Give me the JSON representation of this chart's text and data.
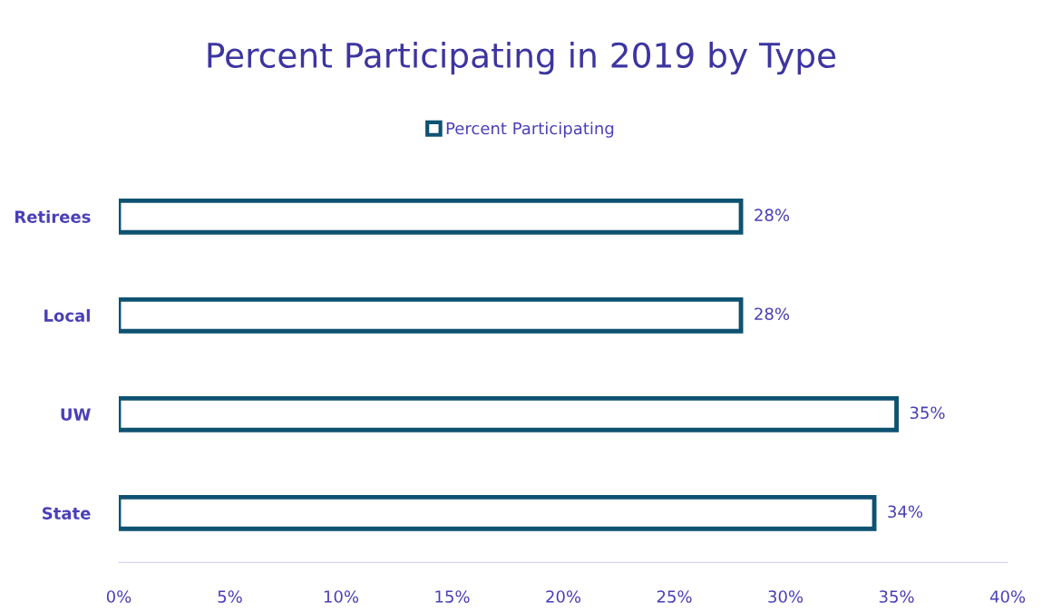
{
  "chart_data": {
    "type": "bar",
    "orientation": "horizontal",
    "title": "Percent Participating in 2019 by Type",
    "categories": [
      "Retirees",
      "Local",
      "UW",
      "State"
    ],
    "series": [
      {
        "name": "Percent Participating",
        "color": "#0e5271",
        "values": [
          28,
          28,
          35,
          34
        ],
        "value_labels": [
          "28%",
          "28%",
          "35%",
          "34%"
        ]
      }
    ],
    "xlim": [
      0,
      40
    ],
    "xticks": [
      {
        "value": 0,
        "label": "0%"
      },
      {
        "value": 5,
        "label": "5%"
      },
      {
        "value": 10,
        "label": "10%"
      },
      {
        "value": 15,
        "label": "15%"
      },
      {
        "value": 20,
        "label": "20%"
      },
      {
        "value": 25,
        "label": "25%"
      },
      {
        "value": 30,
        "label": "30%"
      },
      {
        "value": 35,
        "label": "35%"
      },
      {
        "value": 40,
        "label": "40%"
      }
    ],
    "grid": false,
    "legend": "top"
  }
}
